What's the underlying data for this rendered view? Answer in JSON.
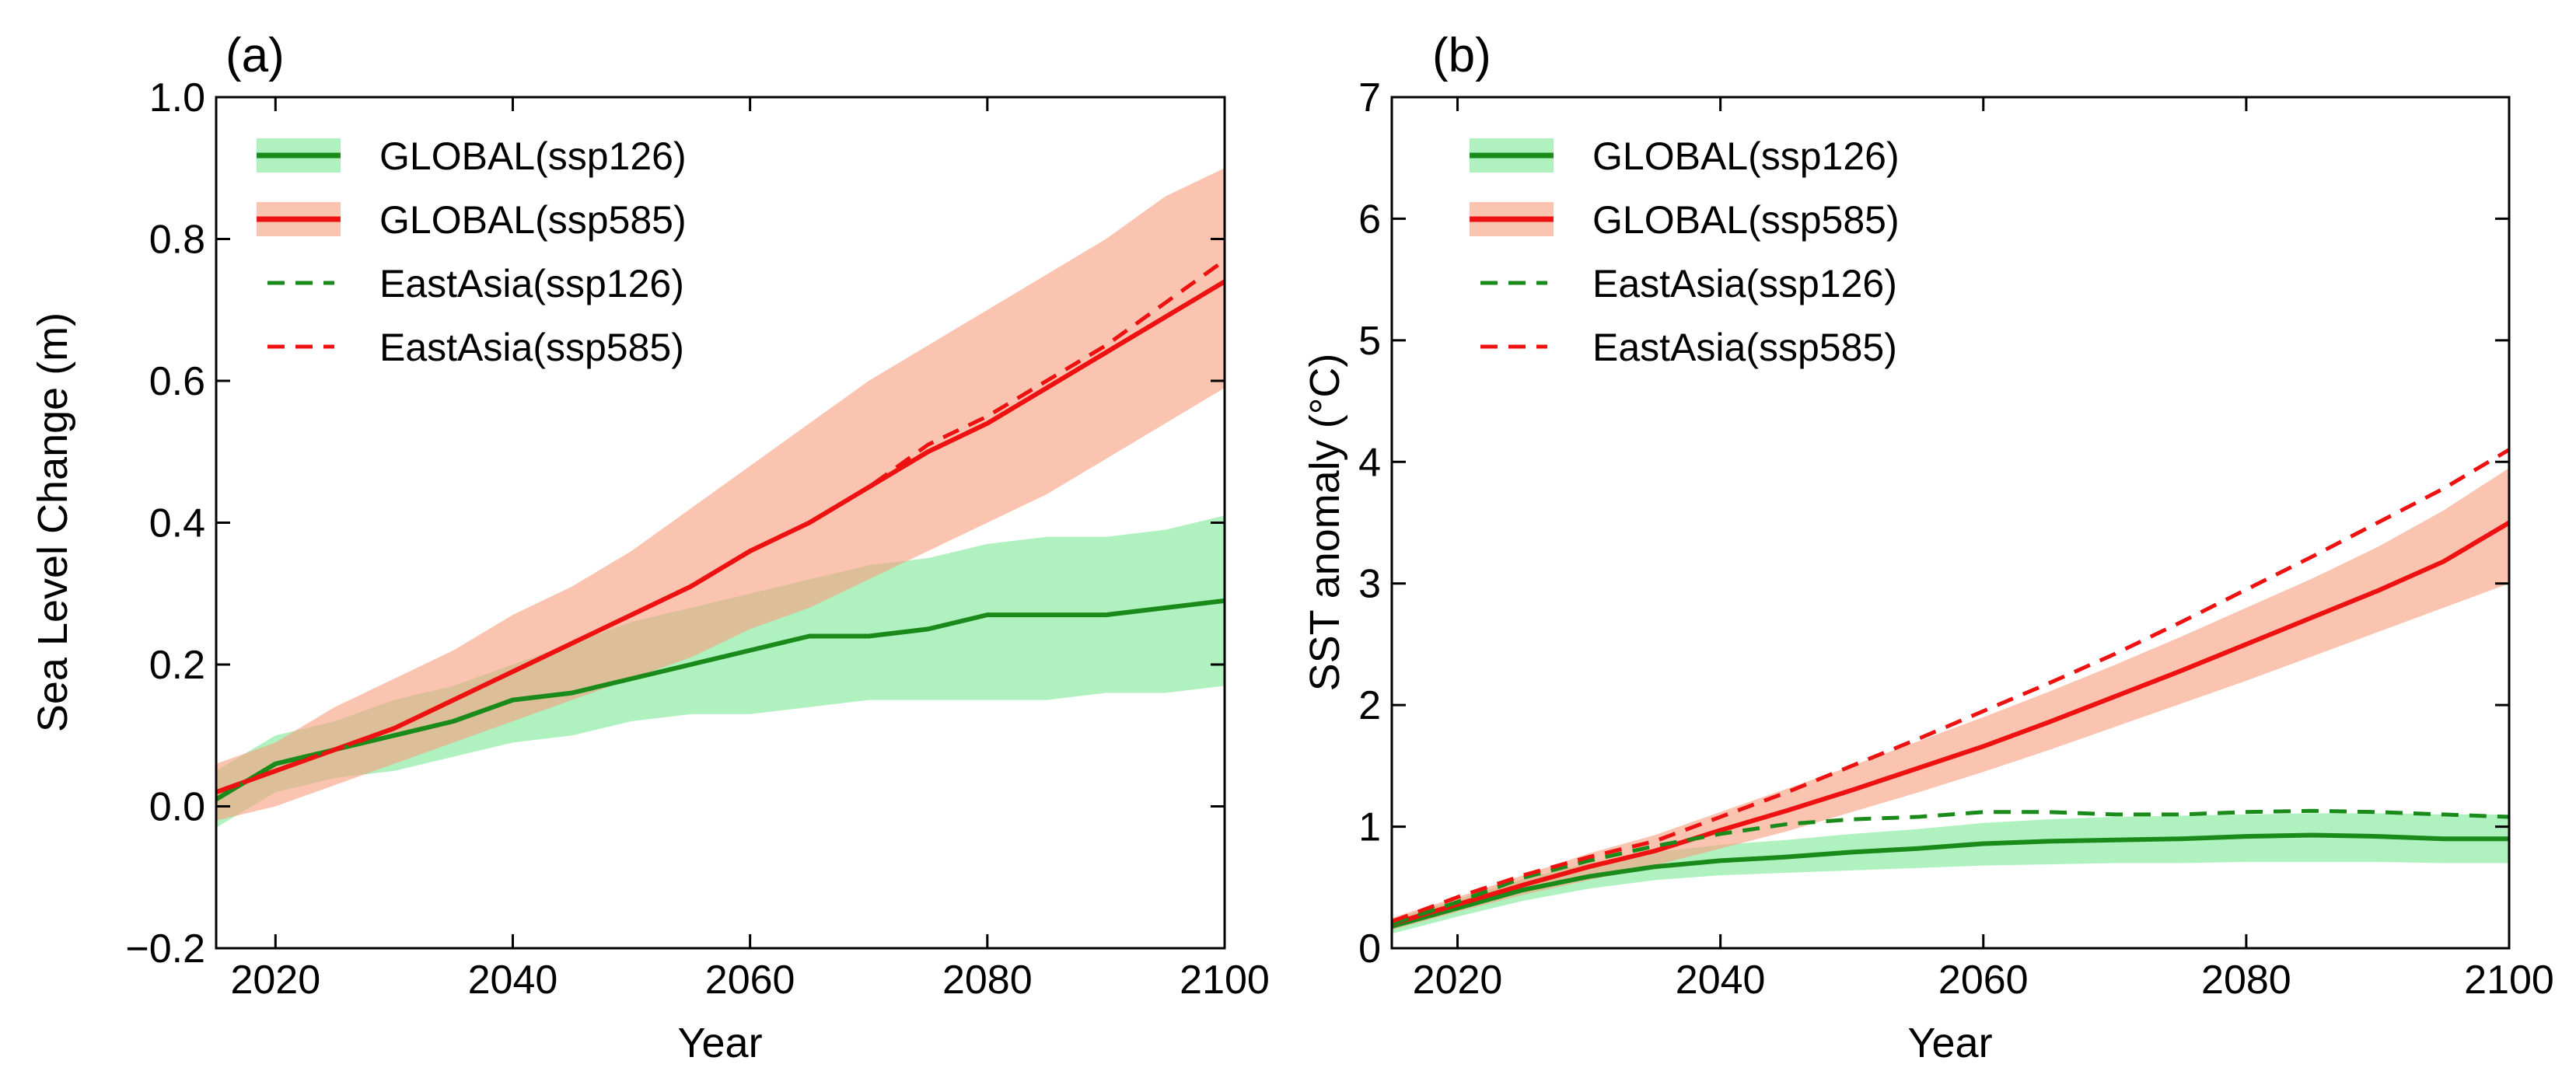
{
  "chart_data": [
    {
      "type": "line",
      "panel_label": "(a)",
      "title": "",
      "xlabel": "Year",
      "ylabel": "Sea Level Change (m)",
      "xlim": [
        2015,
        2100
      ],
      "ylim": [
        -0.2,
        1.0
      ],
      "xticks": [
        2020,
        2040,
        2060,
        2080,
        2100
      ],
      "yticks": [
        -0.2,
        0.0,
        0.2,
        0.4,
        0.6,
        0.8,
        1.0
      ],
      "ytick_labels": [
        "−0.2",
        "0.0",
        "0.2",
        "0.4",
        "0.6",
        "0.8",
        "1.0"
      ],
      "grid": false,
      "legend_position": "top-left",
      "series": [
        {
          "name": "GLOBAL(ssp126)",
          "style": "solid",
          "color": "#1a8a1a",
          "band_color": "#7fe89a",
          "x": [
            2015,
            2020,
            2025,
            2030,
            2035,
            2040,
            2045,
            2050,
            2055,
            2060,
            2065,
            2070,
            2075,
            2080,
            2085,
            2090,
            2095,
            2100
          ],
          "values": [
            0.01,
            0.06,
            0.08,
            0.1,
            0.12,
            0.15,
            0.16,
            0.18,
            0.2,
            0.22,
            0.24,
            0.24,
            0.25,
            0.27,
            0.27,
            0.27,
            0.28,
            0.29
          ],
          "band_lower": [
            -0.03,
            0.02,
            0.04,
            0.05,
            0.07,
            0.09,
            0.1,
            0.12,
            0.13,
            0.13,
            0.14,
            0.15,
            0.15,
            0.15,
            0.15,
            0.16,
            0.16,
            0.17
          ],
          "band_upper": [
            0.05,
            0.1,
            0.12,
            0.15,
            0.17,
            0.2,
            0.23,
            0.26,
            0.28,
            0.3,
            0.32,
            0.34,
            0.35,
            0.37,
            0.38,
            0.38,
            0.39,
            0.41
          ]
        },
        {
          "name": "GLOBAL(ssp585)",
          "style": "solid",
          "color": "#ee1111",
          "band_color": "#f7a080",
          "x": [
            2015,
            2020,
            2025,
            2030,
            2035,
            2040,
            2045,
            2050,
            2055,
            2060,
            2065,
            2070,
            2075,
            2080,
            2085,
            2090,
            2095,
            2100
          ],
          "values": [
            0.02,
            0.05,
            0.08,
            0.11,
            0.15,
            0.19,
            0.23,
            0.27,
            0.31,
            0.36,
            0.4,
            0.45,
            0.5,
            0.54,
            0.59,
            0.64,
            0.69,
            0.74
          ],
          "band_lower": [
            -0.02,
            0.0,
            0.03,
            0.06,
            0.09,
            0.12,
            0.15,
            0.18,
            0.21,
            0.25,
            0.28,
            0.32,
            0.36,
            0.4,
            0.44,
            0.49,
            0.54,
            0.59
          ],
          "band_upper": [
            0.06,
            0.09,
            0.14,
            0.18,
            0.22,
            0.27,
            0.31,
            0.36,
            0.42,
            0.48,
            0.54,
            0.6,
            0.65,
            0.7,
            0.75,
            0.8,
            0.86,
            0.9
          ]
        },
        {
          "name": "EastAsia(ssp126)",
          "style": "dashed",
          "color": "#1a8a1a",
          "x": [
            2015,
            2020,
            2025,
            2030,
            2035,
            2040,
            2045,
            2050,
            2055,
            2060,
            2065,
            2070,
            2075,
            2080,
            2085,
            2090,
            2095,
            2100
          ],
          "values": [
            0.01,
            0.06,
            0.08,
            0.1,
            0.12,
            0.15,
            0.16,
            0.18,
            0.2,
            0.22,
            0.24,
            0.24,
            0.25,
            0.27,
            0.27,
            0.27,
            0.28,
            0.29
          ]
        },
        {
          "name": "EastAsia(ssp585)",
          "style": "dashed",
          "color": "#ee1111",
          "x": [
            2015,
            2020,
            2025,
            2030,
            2035,
            2040,
            2045,
            2050,
            2055,
            2060,
            2065,
            2070,
            2075,
            2080,
            2085,
            2090,
            2095,
            2100
          ],
          "values": [
            0.02,
            0.05,
            0.08,
            0.11,
            0.15,
            0.19,
            0.23,
            0.27,
            0.31,
            0.36,
            0.4,
            0.45,
            0.51,
            0.55,
            0.6,
            0.65,
            0.71,
            0.77
          ]
        }
      ]
    },
    {
      "type": "line",
      "panel_label": "(b)",
      "title": "",
      "xlabel": "Year",
      "ylabel": "SST anomaly (°C)",
      "xlim": [
        2015,
        2100
      ],
      "ylim": [
        0,
        7
      ],
      "xticks": [
        2020,
        2040,
        2060,
        2080,
        2100
      ],
      "yticks": [
        0,
        1,
        2,
        3,
        4,
        5,
        6,
        7
      ],
      "ytick_labels": [
        "0",
        "1",
        "2",
        "3",
        "4",
        "5",
        "6",
        "7"
      ],
      "grid": false,
      "legend_position": "top-left",
      "series": [
        {
          "name": "GLOBAL(ssp126)",
          "style": "solid",
          "color": "#1a8a1a",
          "band_color": "#7fe89a",
          "x": [
            2015,
            2020,
            2025,
            2030,
            2035,
            2040,
            2045,
            2050,
            2055,
            2060,
            2065,
            2070,
            2075,
            2080,
            2085,
            2090,
            2095,
            2100
          ],
          "values": [
            0.18,
            0.33,
            0.48,
            0.59,
            0.67,
            0.72,
            0.75,
            0.79,
            0.82,
            0.86,
            0.88,
            0.89,
            0.9,
            0.92,
            0.93,
            0.92,
            0.9,
            0.9
          ],
          "band_lower": [
            0.12,
            0.26,
            0.39,
            0.49,
            0.56,
            0.6,
            0.62,
            0.64,
            0.66,
            0.68,
            0.69,
            0.7,
            0.7,
            0.71,
            0.71,
            0.71,
            0.7,
            0.7
          ],
          "band_upper": [
            0.24,
            0.4,
            0.57,
            0.7,
            0.79,
            0.85,
            0.89,
            0.94,
            0.98,
            1.03,
            1.06,
            1.08,
            1.09,
            1.1,
            1.11,
            1.11,
            1.1,
            1.1
          ]
        },
        {
          "name": "GLOBAL(ssp585)",
          "style": "solid",
          "color": "#ee1111",
          "band_color": "#f7a080",
          "x": [
            2015,
            2020,
            2025,
            2030,
            2035,
            2040,
            2045,
            2050,
            2055,
            2060,
            2065,
            2070,
            2075,
            2080,
            2085,
            2090,
            2095,
            2100
          ],
          "values": [
            0.2,
            0.36,
            0.52,
            0.67,
            0.8,
            0.97,
            1.13,
            1.3,
            1.48,
            1.66,
            1.86,
            2.07,
            2.28,
            2.5,
            2.72,
            2.94,
            3.18,
            3.5
          ],
          "band_lower": [
            0.15,
            0.3,
            0.44,
            0.56,
            0.68,
            0.82,
            0.96,
            1.12,
            1.28,
            1.45,
            1.63,
            1.82,
            2.01,
            2.2,
            2.4,
            2.6,
            2.8,
            3.0
          ],
          "band_upper": [
            0.25,
            0.42,
            0.6,
            0.78,
            0.93,
            1.12,
            1.31,
            1.5,
            1.7,
            1.9,
            2.11,
            2.33,
            2.56,
            2.8,
            3.04,
            3.3,
            3.6,
            3.95
          ]
        },
        {
          "name": "EastAsia(ssp126)",
          "style": "dashed",
          "color": "#1a8a1a",
          "x": [
            2015,
            2020,
            2025,
            2030,
            2035,
            2040,
            2045,
            2050,
            2055,
            2060,
            2065,
            2070,
            2075,
            2080,
            2085,
            2090,
            2095,
            2100
          ],
          "values": [
            0.2,
            0.38,
            0.58,
            0.72,
            0.84,
            0.94,
            1.02,
            1.06,
            1.08,
            1.12,
            1.12,
            1.1,
            1.1,
            1.12,
            1.13,
            1.12,
            1.1,
            1.08
          ]
        },
        {
          "name": "EastAsia(ssp585)",
          "style": "dashed",
          "color": "#ee1111",
          "x": [
            2015,
            2020,
            2025,
            2030,
            2035,
            2040,
            2045,
            2050,
            2055,
            2060,
            2065,
            2070,
            2075,
            2080,
            2085,
            2090,
            2095,
            2100
          ],
          "values": [
            0.22,
            0.42,
            0.6,
            0.75,
            0.88,
            1.08,
            1.28,
            1.5,
            1.72,
            1.95,
            2.18,
            2.42,
            2.68,
            2.95,
            3.22,
            3.5,
            3.78,
            4.1
          ]
        }
      ]
    }
  ]
}
